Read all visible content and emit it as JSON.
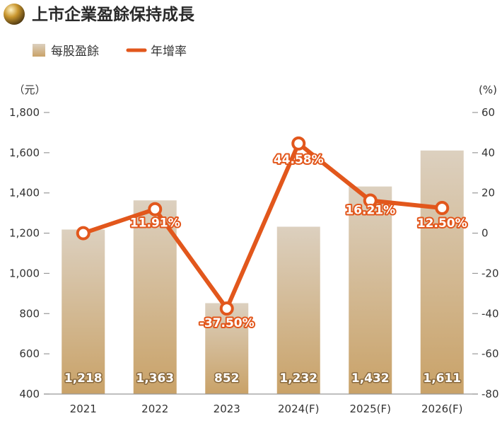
{
  "title": "上市企業盈餘保持成長",
  "colors": {
    "bar_top": "#dcd0bf",
    "bar_bottom": "#c9a268",
    "line": "#e2571c",
    "axis": "#999999"
  },
  "chart_data": {
    "type": "bar",
    "title": "上市企業盈餘保持成長",
    "categories": [
      "2021",
      "2022",
      "2023",
      "2024(F)",
      "2025(F)",
      "2026(F)"
    ],
    "series": [
      {
        "name": "每股盈餘",
        "type": "bar",
        "axis": "left",
        "values": [
          1218,
          1363,
          852,
          1232,
          1432,
          1611
        ],
        "labels": [
          "1,218",
          "1,363",
          "852",
          "1,232",
          "1,432",
          "1,611"
        ]
      },
      {
        "name": "年增率",
        "type": "line",
        "axis": "right",
        "values": [
          0,
          11.91,
          -37.5,
          44.58,
          16.21,
          12.5
        ],
        "labels": [
          "",
          "11.91%",
          "-37.50%",
          "44.58%",
          "16.21%",
          "12.50%"
        ]
      }
    ],
    "y_left": {
      "unit": "（元）",
      "range": [
        400,
        1800
      ],
      "ticks": [
        400,
        600,
        800,
        1000,
        1200,
        1400,
        1600,
        1800
      ],
      "tick_labels": [
        "400",
        "600",
        "800",
        "1,000",
        "1,200",
        "1,400",
        "1,600",
        "1,800"
      ]
    },
    "y_right": {
      "unit": "(%)",
      "range": [
        -80,
        60
      ],
      "ticks": [
        -80,
        -60,
        -40,
        -20,
        0,
        20,
        40,
        60
      ],
      "tick_labels": [
        "-80",
        "-60",
        "-40",
        "-20",
        "0",
        "20",
        "40",
        "60"
      ]
    },
    "legend": {
      "position": "top-left",
      "entries": [
        "每股盈餘",
        "年增率"
      ]
    },
    "grid": false
  }
}
